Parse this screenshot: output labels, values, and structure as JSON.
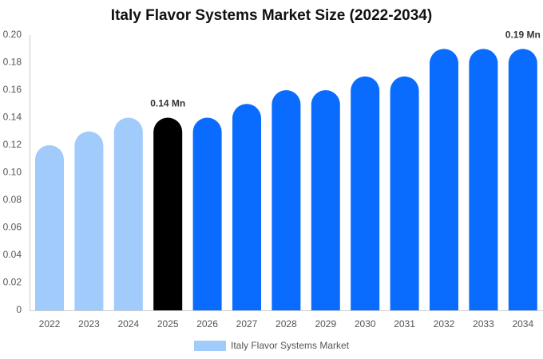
{
  "chart_data": {
    "type": "bar",
    "title": "Italy Flavor Systems Market Size (2022-2034)",
    "categories": [
      "2022",
      "2023",
      "2024",
      "2025",
      "2026",
      "2027",
      "2028",
      "2029",
      "2030",
      "2031",
      "2032",
      "2033",
      "2034"
    ],
    "series": [
      {
        "name": "Italy Flavor Systems Market",
        "color": "#a0cbfa",
        "colors": [
          "#a0cbfa",
          "#a0cbfa",
          "#a0cbfa",
          "#000000",
          "#0a6cff",
          "#0a6cff",
          "#0a6cff",
          "#0a6cff",
          "#0a6cff",
          "#0a6cff",
          "#0a6cff",
          "#0a6cff",
          "#0a6cff"
        ],
        "values": [
          0.12,
          0.13,
          0.14,
          0.14,
          0.14,
          0.15,
          0.16,
          0.16,
          0.17,
          0.17,
          0.19,
          0.19,
          0.19
        ],
        "value_labels": [
          null,
          null,
          null,
          "0.14 Mn",
          null,
          null,
          null,
          null,
          null,
          null,
          null,
          null,
          "0.19 Mn"
        ]
      }
    ],
    "ylim": [
      0,
      0.2
    ],
    "yticks": [
      0,
      0.02,
      0.04,
      0.06,
      0.08,
      {
        "value": 0.1,
        "label": "0.10"
      },
      0.12,
      0.14,
      0.16,
      0.18,
      {
        "value": 0.2,
        "label": "0.20"
      }
    ],
    "grid": false,
    "legend": "bottom"
  }
}
